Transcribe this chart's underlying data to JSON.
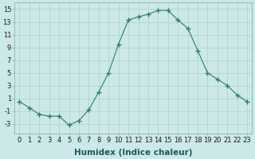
{
  "x": [
    0,
    1,
    2,
    3,
    4,
    5,
    6,
    7,
    8,
    9,
    10,
    11,
    12,
    13,
    14,
    15,
    16,
    17,
    18,
    19,
    20,
    21,
    22,
    23
  ],
  "y": [
    0.5,
    -0.5,
    -1.5,
    -1.8,
    -1.8,
    -3.2,
    -2.5,
    -0.8,
    2.0,
    5.0,
    9.5,
    13.3,
    13.8,
    14.2,
    14.8,
    14.8,
    13.3,
    12.0,
    8.5,
    5.0,
    4.0,
    3.0,
    1.5,
    0.5
  ],
  "line_color": "#2e7d6e",
  "marker": "+",
  "marker_size": 4,
  "bg_color": "#cce8e8",
  "grid_color": "#b0d0d0",
  "xlabel": "Humidex (Indice chaleur)",
  "xlim": [
    -0.5,
    23.5
  ],
  "ylim": [
    -4.5,
    16
  ],
  "yticks": [
    -3,
    -1,
    1,
    3,
    5,
    7,
    9,
    11,
    13,
    15
  ],
  "xtick_labels": [
    "0",
    "1",
    "2",
    "3",
    "4",
    "5",
    "6",
    "7",
    "8",
    "9",
    "10",
    "11",
    "12",
    "13",
    "14",
    "15",
    "16",
    "17",
    "18",
    "19",
    "20",
    "21",
    "22",
    "23"
  ],
  "tick_fontsize": 6.0,
  "xlabel_fontsize": 7.5
}
